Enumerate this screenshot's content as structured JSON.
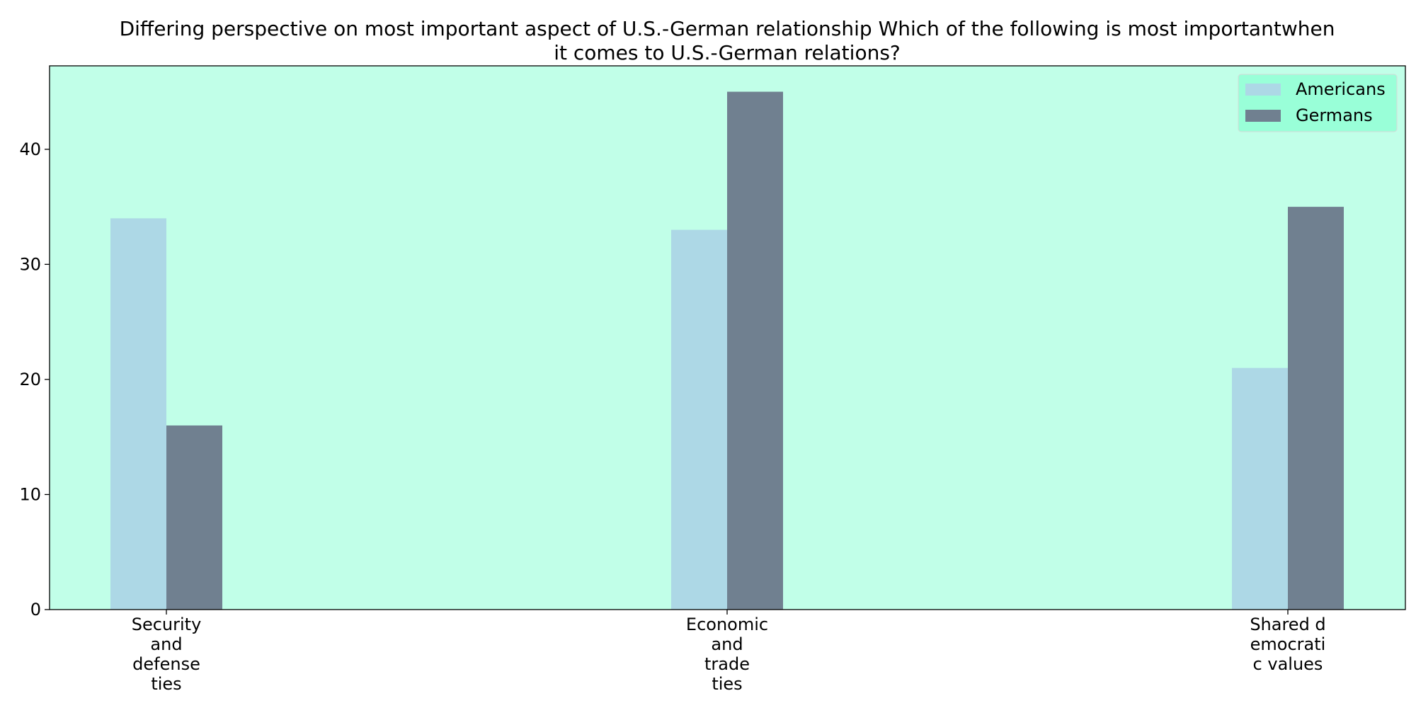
{
  "chart_data": {
    "type": "bar",
    "title_lines": [
      "Differing perspective on most important aspect of U.S.-German relationship Which of the following is most importantwhen",
      "it comes to U.S.-German relations?"
    ],
    "xlabel": "",
    "ylabel": "",
    "categories": [
      [
        "Security",
        "and",
        "defense",
        "ties"
      ],
      [
        "Economic",
        "and",
        "trade",
        "ties"
      ],
      [
        "Shared d",
        "emocrati",
        "c values"
      ]
    ],
    "series": [
      {
        "name": "Americans",
        "values": [
          34,
          33,
          21
        ],
        "color": "#add8e6"
      },
      {
        "name": "Germans",
        "values": [
          16,
          45,
          35
        ],
        "color": "#708090"
      }
    ],
    "ylim": [
      0,
      47.25
    ],
    "yticks": [
      0,
      10,
      20,
      30,
      40
    ],
    "grid": false,
    "legend_position": "top-right",
    "plot_background": "#c1ffe8",
    "legend_background": "#99ffd8"
  }
}
